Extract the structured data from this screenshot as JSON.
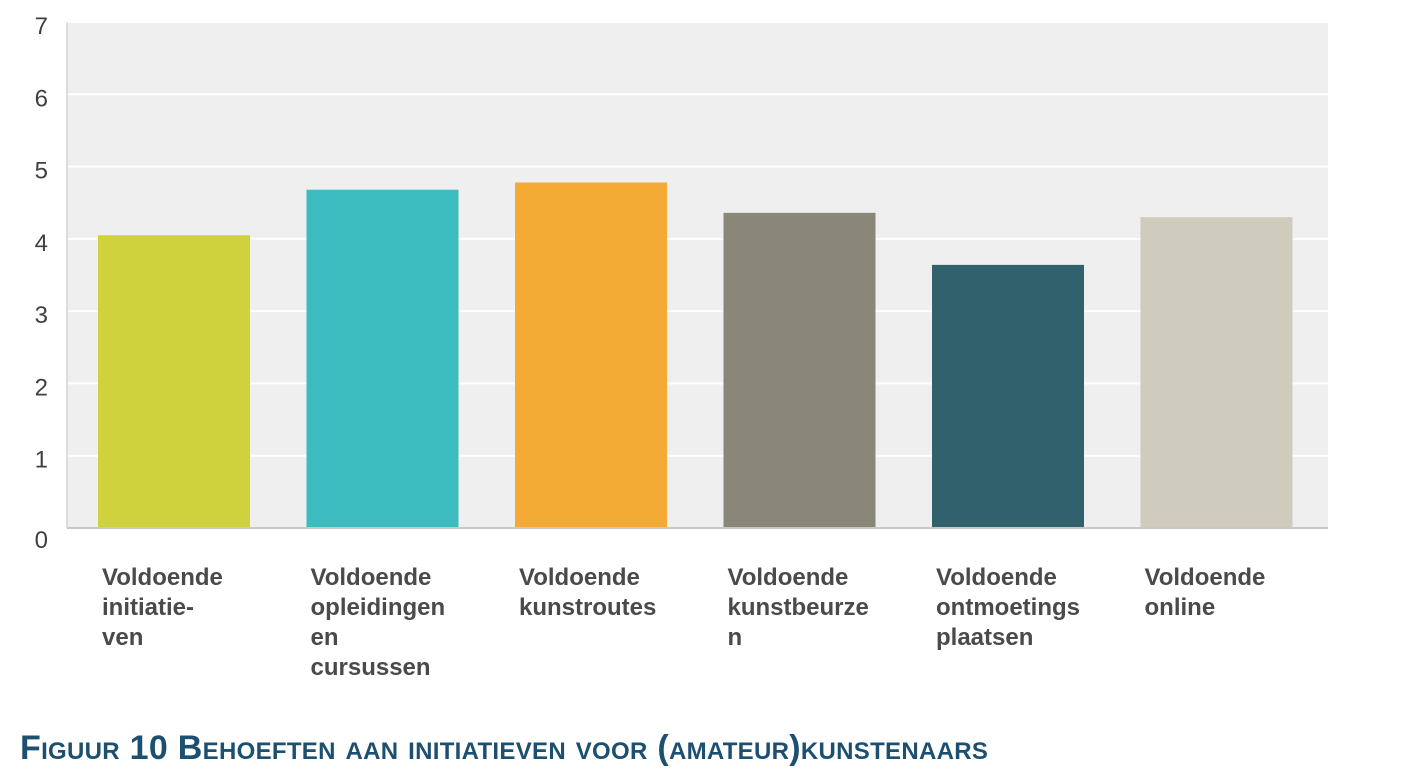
{
  "chart_data": {
    "type": "bar",
    "categories": [
      "Voldoende initiatie-ven",
      "Voldoende opleidingen en cursussen",
      "Voldoende kunstroutes",
      "Voldoende kunstbeurzen",
      "Voldoende ontmoetings plaatsen",
      "Voldoende online"
    ],
    "category_label_lines": [
      [
        "Voldoende",
        "initiatie-",
        "ven"
      ],
      [
        "Voldoende",
        "opleidingen",
        "en",
        "cursussen"
      ],
      [
        "Voldoende",
        "kunstroutes"
      ],
      [
        "Voldoende",
        "kunstbeurze",
        "n"
      ],
      [
        "Voldoende",
        "ontmoetings",
        "plaatsen"
      ],
      [
        "Voldoende",
        "online"
      ]
    ],
    "values": [
      4.05,
      4.68,
      4.78,
      4.36,
      3.64,
      4.3
    ],
    "colors": [
      "#cfd23c",
      "#3dbcbf",
      "#f3ab36",
      "#898878",
      "#31616d",
      "#cfcbbd"
    ],
    "ylim": [
      0,
      7
    ],
    "yticks": [
      "0",
      "1",
      "2",
      "3",
      "4",
      "5",
      "6",
      "7"
    ],
    "grid": true,
    "plot_background": "#efefef",
    "title": "",
    "xlabel": "",
    "ylabel": ""
  },
  "caption": "Figuur 10 Behoeften aan initiatieven voor (amateur)kunstenaars"
}
